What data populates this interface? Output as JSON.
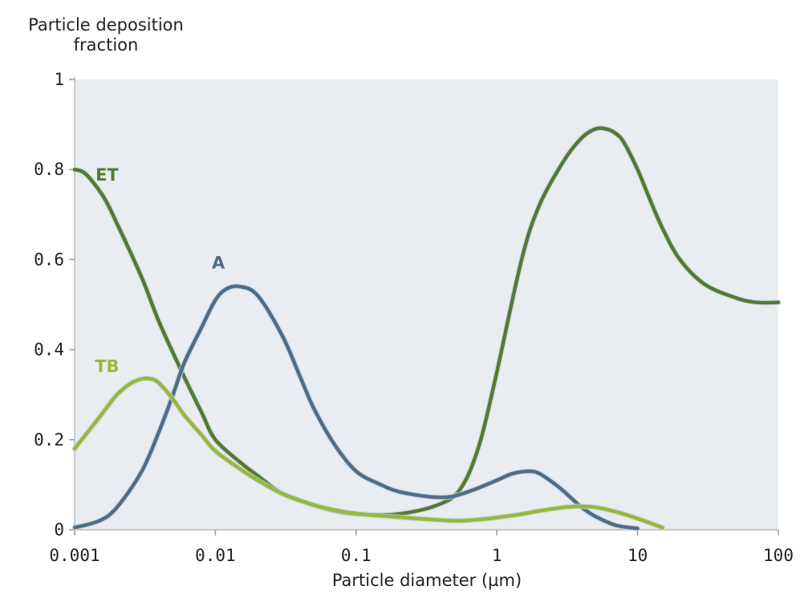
{
  "chart_data": {
    "type": "line",
    "title": "",
    "ylabel_lines": [
      "Particle deposition",
      "fraction"
    ],
    "xlabel": "Particle diameter (µm)",
    "x_scale": "log",
    "xlim": [
      0.001,
      100
    ],
    "ylim": [
      0,
      1
    ],
    "x_ticks": [
      0.001,
      0.01,
      0.1,
      1,
      10,
      100
    ],
    "x_tick_labels": [
      "0.001",
      "0.01",
      "0.1",
      "1",
      "10",
      "100"
    ],
    "y_ticks": [
      0,
      0.2,
      0.4,
      0.6,
      0.8,
      1
    ],
    "y_tick_labels": [
      "0",
      "0.2",
      "0.4",
      "0.6",
      "0.8",
      "1"
    ],
    "grid": false,
    "plot_background": "#e9edf1",
    "series": [
      {
        "name": "ET",
        "color": "#537a35",
        "x": [
          0.001,
          0.0012,
          0.0016,
          0.002,
          0.003,
          0.004,
          0.006,
          0.008,
          0.01,
          0.015,
          0.02,
          0.03,
          0.05,
          0.07,
          0.1,
          0.15,
          0.2,
          0.3,
          0.4,
          0.5,
          0.6,
          0.7,
          0.8,
          1,
          1.5,
          2,
          3,
          4,
          5,
          6,
          7,
          8,
          10,
          12,
          15,
          20,
          30,
          50,
          70,
          100
        ],
        "y": [
          0.8,
          0.79,
          0.74,
          0.68,
          0.56,
          0.46,
          0.34,
          0.26,
          0.2,
          0.15,
          0.12,
          0.08,
          0.055,
          0.042,
          0.035,
          0.033,
          0.035,
          0.045,
          0.058,
          0.075,
          0.11,
          0.16,
          0.22,
          0.35,
          0.6,
          0.72,
          0.82,
          0.87,
          0.89,
          0.89,
          0.88,
          0.86,
          0.8,
          0.74,
          0.67,
          0.6,
          0.545,
          0.515,
          0.505,
          0.505
        ]
      },
      {
        "name": "A",
        "color": "#4e6e88",
        "x": [
          0.001,
          0.0015,
          0.002,
          0.003,
          0.004,
          0.005,
          0.006,
          0.008,
          0.01,
          0.012,
          0.015,
          0.02,
          0.03,
          0.04,
          0.05,
          0.07,
          0.1,
          0.15,
          0.2,
          0.3,
          0.4,
          0.5,
          0.7,
          1,
          1.3,
          1.7,
          2,
          2.5,
          3,
          4,
          5,
          7,
          10
        ],
        "y": [
          0.005,
          0.02,
          0.05,
          0.13,
          0.22,
          0.3,
          0.37,
          0.45,
          0.51,
          0.535,
          0.54,
          0.52,
          0.43,
          0.34,
          0.27,
          0.19,
          0.13,
          0.1,
          0.085,
          0.075,
          0.072,
          0.075,
          0.09,
          0.11,
          0.125,
          0.13,
          0.125,
          0.105,
          0.085,
          0.05,
          0.03,
          0.01,
          0.003
        ]
      },
      {
        "name": "TB",
        "color": "#95b93b",
        "x": [
          0.001,
          0.0015,
          0.002,
          0.0025,
          0.003,
          0.0035,
          0.004,
          0.005,
          0.006,
          0.008,
          0.01,
          0.015,
          0.02,
          0.03,
          0.05,
          0.07,
          0.1,
          0.2,
          0.3,
          0.5,
          0.7,
          1,
          1.5,
          2,
          3,
          4,
          5,
          7,
          10,
          15
        ],
        "y": [
          0.18,
          0.25,
          0.3,
          0.325,
          0.335,
          0.335,
          0.325,
          0.29,
          0.255,
          0.21,
          0.175,
          0.135,
          0.11,
          0.08,
          0.055,
          0.044,
          0.036,
          0.028,
          0.024,
          0.02,
          0.022,
          0.027,
          0.035,
          0.042,
          0.05,
          0.052,
          0.05,
          0.04,
          0.025,
          0.005
        ]
      }
    ],
    "series_labels": [
      {
        "text": "ET",
        "x": 0.0017,
        "y": 0.775,
        "color": "#537a35"
      },
      {
        "text": "A",
        "x": 0.0105,
        "y": 0.58,
        "color": "#4e6e88"
      },
      {
        "text": "TB",
        "x": 0.0017,
        "y": 0.35,
        "color": "#95b93b"
      }
    ]
  }
}
